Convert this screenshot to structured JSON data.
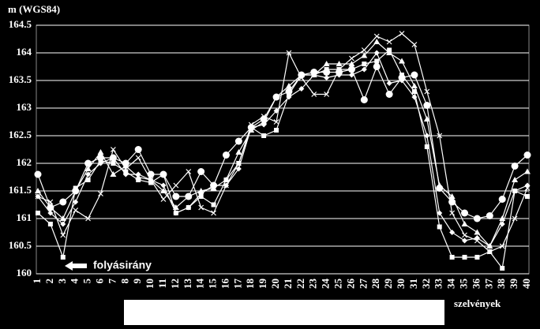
{
  "chart_data": {
    "type": "line",
    "ylabel": "m (WGS84)",
    "xlabel": "szelvények",
    "annotation": "folyásirány",
    "categories": [
      "1",
      "2",
      "3",
      "4",
      "5",
      "6",
      "7",
      "8",
      "9",
      "10",
      "11",
      "12",
      "13",
      "14",
      "15",
      "16",
      "17",
      "18",
      "19",
      "20",
      "21",
      "22",
      "23",
      "24",
      "25",
      "26",
      "27",
      "28",
      "29",
      "30",
      "31",
      "32",
      "33",
      "34",
      "35",
      "36",
      "37",
      "38",
      "39",
      "40"
    ],
    "ylim": [
      160,
      164.5
    ],
    "yticks": [
      160,
      160.5,
      161,
      161.5,
      162,
      162.5,
      163,
      163.5,
      164,
      164.5
    ],
    "grid": true,
    "series": [
      {
        "color": "#ffffff",
        "marker": "circle",
        "values": [
          161.8,
          161.2,
          161.3,
          161.5,
          162.0,
          162.1,
          162.1,
          162.0,
          162.25,
          161.8,
          161.8,
          161.4,
          161.4,
          161.85,
          161.6,
          162.15,
          162.4,
          162.65,
          162.8,
          163.2,
          163.3,
          163.6,
          163.65,
          163.65,
          163.65,
          163.7,
          163.15,
          163.75,
          163.25,
          163.55,
          163.6,
          163.05,
          161.55,
          161.3,
          161.1,
          161.0,
          161.05,
          161.35,
          161.95,
          162.15
        ]
      },
      {
        "color": "#ffffff",
        "marker": "square",
        "values": [
          161.1,
          160.9,
          160.3,
          161.55,
          161.7,
          162.05,
          162.0,
          161.85,
          161.7,
          161.65,
          161.8,
          161.1,
          161.2,
          161.4,
          161.25,
          161.7,
          162.0,
          162.65,
          162.5,
          162.6,
          163.25,
          163.6,
          163.6,
          163.7,
          163.7,
          163.7,
          163.8,
          163.85,
          164.05,
          163.6,
          163.3,
          162.3,
          160.85,
          160.3,
          160.3,
          160.3,
          160.4,
          160.1,
          161.5,
          161.4
        ]
      },
      {
        "color": "#ffffff",
        "marker": "triangle",
        "values": [
          161.5,
          161.2,
          161.0,
          161.5,
          161.9,
          162.2,
          161.8,
          161.95,
          161.75,
          161.7,
          161.5,
          161.2,
          161.4,
          161.5,
          161.55,
          161.7,
          162.2,
          162.6,
          162.75,
          163.2,
          163.4,
          163.6,
          163.6,
          163.8,
          163.8,
          163.8,
          163.95,
          164.2,
          164.0,
          163.85,
          163.4,
          162.8,
          161.6,
          161.4,
          160.9,
          160.75,
          160.5,
          161.0,
          161.7,
          161.85
        ]
      },
      {
        "color": "#ffffff",
        "marker": "diamond",
        "values": [
          161.4,
          161.1,
          160.9,
          161.3,
          161.8,
          162.0,
          162.1,
          161.8,
          161.8,
          161.7,
          161.6,
          161.1,
          161.2,
          161.45,
          161.6,
          161.6,
          161.9,
          162.65,
          162.7,
          162.95,
          163.2,
          163.35,
          163.6,
          163.55,
          163.6,
          163.6,
          163.7,
          164.0,
          163.45,
          163.5,
          163.2,
          162.5,
          161.1,
          160.75,
          160.6,
          160.65,
          160.5,
          160.9,
          161.5,
          161.6
        ]
      },
      {
        "color": "#ffffff",
        "marker": "cross",
        "values": [
          161.4,
          161.3,
          160.7,
          161.15,
          161.0,
          161.45,
          162.25,
          161.9,
          162.1,
          161.7,
          161.35,
          161.6,
          161.85,
          161.2,
          161.1,
          161.6,
          162.0,
          162.7,
          162.85,
          162.75,
          164.0,
          163.55,
          163.25,
          163.25,
          163.7,
          163.9,
          164.05,
          164.3,
          164.2,
          164.35,
          164.15,
          163.3,
          162.5,
          161.1,
          160.7,
          160.6,
          160.4,
          160.5,
          161.0,
          161.55
        ]
      }
    ]
  }
}
